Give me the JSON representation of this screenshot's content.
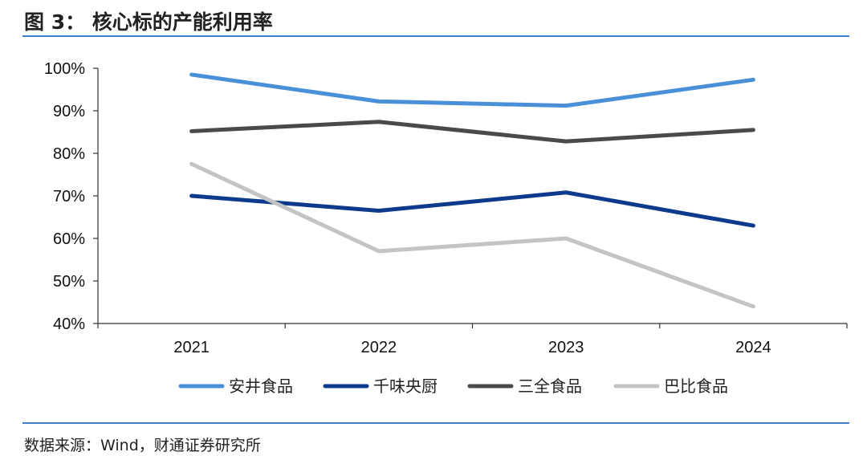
{
  "figure": {
    "title": "图 3： 核心标的产能利用率",
    "source": "数据来源：Wind，财通证券研究所",
    "rule_color": "#3f7fc9"
  },
  "chart_data": {
    "type": "line",
    "title": "",
    "xlabel": "",
    "ylabel": "",
    "categories": [
      "2021",
      "2022",
      "2023",
      "2024"
    ],
    "ylim": [
      40,
      100
    ],
    "yticks": [
      40,
      50,
      60,
      70,
      80,
      90,
      100
    ],
    "ytick_labels": [
      "40%",
      "50%",
      "60%",
      "70%",
      "80%",
      "90%",
      "100%"
    ],
    "grid": false,
    "legend_position": "bottom",
    "series": [
      {
        "name": "安井食品",
        "values": [
          98.5,
          92.2,
          91.2,
          97.3
        ],
        "color": "#4a90d9"
      },
      {
        "name": "千味央厨",
        "values": [
          70.0,
          66.5,
          70.8,
          63.0
        ],
        "color": "#0d3a8c"
      },
      {
        "name": "三全食品",
        "values": [
          85.2,
          87.4,
          82.8,
          85.5
        ],
        "color": "#4a4a4a"
      },
      {
        "name": "巴比食品",
        "values": [
          77.5,
          57.0,
          60.0,
          44.0
        ],
        "color": "#c4c4c4"
      }
    ]
  }
}
